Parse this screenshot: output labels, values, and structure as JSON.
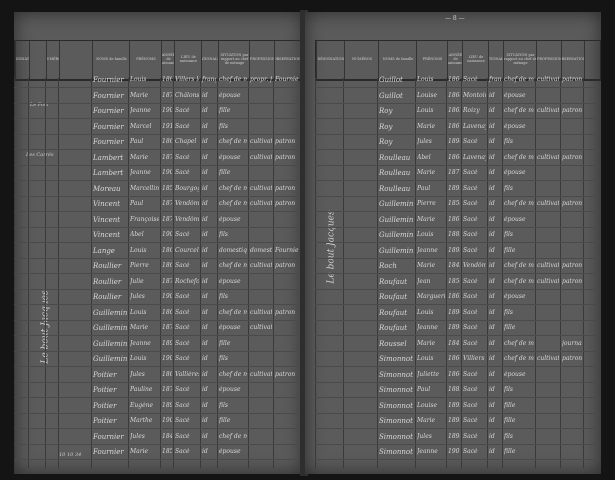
{
  "page_number": "— 8 —",
  "headers": {
    "designation": "DÉSIGNATION",
    "numeros": "NUMÉROS",
    "noms": "NOMS de famille",
    "prenoms": "PRÉNOMS",
    "annee": "ANNÉE de naissance",
    "lieu": "LIEU de naissance",
    "nationalite": "NATIONALITÉ",
    "situation": "SITUATION par rapport au chef de ménage",
    "profession": "PROFESSION",
    "observations": "OBSERVATIONS"
  },
  "left": {
    "street": "Le bout Jacques",
    "places": [
      "Le Port",
      "Les Carrés"
    ],
    "footer": "10 10 34",
    "rows": [
      [
        "Fournier",
        "Louis",
        "1868",
        "Villers le Sec",
        "française",
        "chef de ménage",
        "propr. fermier",
        "Fournier"
      ],
      [
        "Fournier",
        "Marie",
        "1878",
        "Châlons",
        "id",
        "épouse",
        "",
        ""
      ],
      [
        "Fournier",
        "Jeanne",
        "1904",
        "Sacé",
        "id",
        "fille",
        "",
        ""
      ],
      [
        "Fournier",
        "Marcel",
        "1910",
        "Sacé",
        "id",
        "fils",
        "",
        ""
      ],
      [
        "Fournier",
        "Paul",
        "1863",
        "Chapel",
        "id",
        "chef de ménage",
        "cultivateur",
        "patron"
      ],
      [
        "Lambert",
        "Marie",
        "1870",
        "Sacé",
        "id",
        "épouse",
        "cultivatrice",
        "patron"
      ],
      [
        "Lambert",
        "Jeanne",
        "1901",
        "Sacé",
        "id",
        "fille",
        "",
        ""
      ],
      [
        "Moreau",
        "Marcellin",
        "1858",
        "Bourgogne",
        "id",
        "chef de ménage",
        "cultivateur",
        "patron"
      ],
      [
        "Vincent",
        "Paul",
        "1873",
        "Vendôme",
        "id",
        "chef de ménage",
        "cultivateur",
        "patron"
      ],
      [
        "Vincent",
        "Françoise",
        "1878",
        "Vendôme",
        "id",
        "épouse",
        "",
        ""
      ],
      [
        "Vincent",
        "Abel",
        "1904",
        "Sacé",
        "id",
        "fils",
        "",
        ""
      ],
      [
        "Lange",
        "Louis",
        "1861",
        "Courcelles",
        "id",
        "domestique",
        "domestique",
        "Fournier"
      ],
      [
        "Roullier",
        "Pierre",
        "1865",
        "Sacé",
        "id",
        "chef de ménage",
        "cultivateur",
        "patron"
      ],
      [
        "Roullier",
        "Julie",
        "1874",
        "Rochefort",
        "id",
        "épouse",
        "",
        ""
      ],
      [
        "Roullier",
        "Jules",
        "1903",
        "Sacé",
        "id",
        "fils",
        "",
        ""
      ],
      [
        "Guillemin",
        "Louis",
        "1868",
        "Sacé",
        "id",
        "chef de ménage",
        "cultivateur",
        "patron"
      ],
      [
        "Guillemin",
        "Marie",
        "1874",
        "Sacé",
        "id",
        "épouse",
        "cultivatrice",
        ""
      ],
      [
        "Guillemin",
        "Jeanne",
        "1899",
        "Sacé",
        "id",
        "fille",
        "",
        ""
      ],
      [
        "Guillemin",
        "Louis",
        "1903",
        "Sacé",
        "id",
        "fils",
        "",
        ""
      ],
      [
        "Poitier",
        "Jules",
        "1867",
        "Vallières",
        "id",
        "chef de ménage",
        "cultivateur",
        "patron"
      ],
      [
        "Poitier",
        "Pauline",
        "1872",
        "Sacé",
        "id",
        "épouse",
        "",
        ""
      ],
      [
        "Poitier",
        "Eugène",
        "1895",
        "Sacé",
        "id",
        "fils",
        "",
        ""
      ],
      [
        "Poitier",
        "Marthe",
        "1900",
        "Sacé",
        "id",
        "fille",
        "",
        ""
      ],
      [
        "Fournier",
        "Jules",
        "1848",
        "Sacé",
        "id",
        "chef de ménage",
        "",
        ""
      ],
      [
        "Fournier",
        "Marie",
        "1852",
        "Sacé",
        "id",
        "épouse",
        "",
        ""
      ]
    ]
  },
  "right": {
    "street": "Le bout Jacques",
    "rows": [
      [
        "Guillot",
        "Louis",
        "1866",
        "Sacé",
        "française",
        "chef de ménage",
        "cultivateur",
        "patron"
      ],
      [
        "Guillot",
        "Louise",
        "1868",
        "Montoire",
        "id",
        "épouse",
        "",
        ""
      ],
      [
        "Roy",
        "Louis",
        "1862",
        "Roizy",
        "id",
        "chef de ménage",
        "cultivateur",
        "patron"
      ],
      [
        "Roy",
        "Marie",
        "1867",
        "Lavenay",
        "id",
        "épouse",
        "",
        ""
      ],
      [
        "Roy",
        "Jules",
        "1898",
        "Sacé",
        "id",
        "fils",
        "",
        ""
      ],
      [
        "Roulleau",
        "Abel",
        "1864",
        "Lavenay",
        "id",
        "chef de ménage",
        "cultivateur",
        "patron"
      ],
      [
        "Roulleau",
        "Marie",
        "1871",
        "Sacé",
        "id",
        "épouse",
        "",
        ""
      ],
      [
        "Roulleau",
        "Paul",
        "1899",
        "Sacé",
        "id",
        "fils",
        "",
        ""
      ],
      [
        "Guillemin",
        "Pierre",
        "1858",
        "Sacé",
        "id",
        "chef de ménage",
        "cultivateur",
        "patron"
      ],
      [
        "Guillemin",
        "Marie",
        "1861",
        "Sacé",
        "id",
        "épouse",
        "",
        ""
      ],
      [
        "Guillemin",
        "Louis",
        "1889",
        "Sacé",
        "id",
        "fils",
        "",
        ""
      ],
      [
        "Guillemin",
        "Jeanne",
        "1895",
        "Sacé",
        "id",
        "fille",
        "",
        ""
      ],
      [
        "Roch",
        "Marie",
        "1842",
        "Vendôme",
        "id",
        "chef de ménage",
        "cultivatrice",
        "patron"
      ],
      [
        "Roufaut",
        "Jean",
        "1856",
        "Sacé",
        "id",
        "chef de ménage",
        "cultivateur",
        "patron"
      ],
      [
        "Roufaut",
        "Marguerite",
        "1862",
        "Sacé",
        "id",
        "épouse",
        "",
        ""
      ],
      [
        "Roufaut",
        "Louis",
        "1890",
        "Sacé",
        "id",
        "fils",
        "",
        ""
      ],
      [
        "Roufaut",
        "Jeanne",
        "1896",
        "Sacé",
        "id",
        "fille",
        "",
        ""
      ],
      [
        "Roussel",
        "Marie",
        "1849",
        "Sacé",
        "id",
        "chef de ménage",
        "",
        "journalière"
      ],
      [
        "Simonnot",
        "Louis",
        "1860",
        "Villiers",
        "id",
        "chef de ménage",
        "cultivateur",
        "patron"
      ],
      [
        "Simonnot",
        "Juliette",
        "1866",
        "Sacé",
        "id",
        "épouse",
        "",
        ""
      ],
      [
        "Simonnot",
        "Paul",
        "1889",
        "Sacé",
        "id",
        "fils",
        "",
        ""
      ],
      [
        "Simonnot",
        "Louise",
        "1892",
        "Sacé",
        "id",
        "fille",
        "",
        ""
      ],
      [
        "Simonnot",
        "Marie",
        "1895",
        "Sacé",
        "id",
        "fille",
        "",
        ""
      ],
      [
        "Simonnot",
        "Jules",
        "1898",
        "Sacé",
        "id",
        "fils",
        "",
        ""
      ],
      [
        "Simonnot",
        "Jeanne",
        "1901",
        "Sacé",
        "id",
        "fille",
        "",
        ""
      ]
    ]
  }
}
